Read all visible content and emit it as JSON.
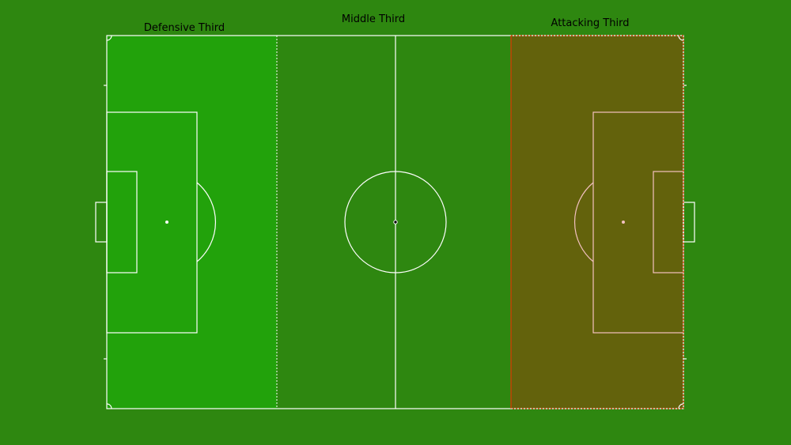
{
  "colors": {
    "background": "#2e8710",
    "pitch": "#2e8710",
    "lines": "#ffffff",
    "defensive_fill": "#22a20b",
    "attacking_fill": "#63620c",
    "attacking_lines": "#f3c1c1",
    "attacking_border": "#ff2a00"
  },
  "zones": {
    "defensive": {
      "label": "Defensive Third"
    },
    "middle": {
      "label": "Middle Third"
    },
    "attacking": {
      "label": "Attacking Third"
    }
  }
}
